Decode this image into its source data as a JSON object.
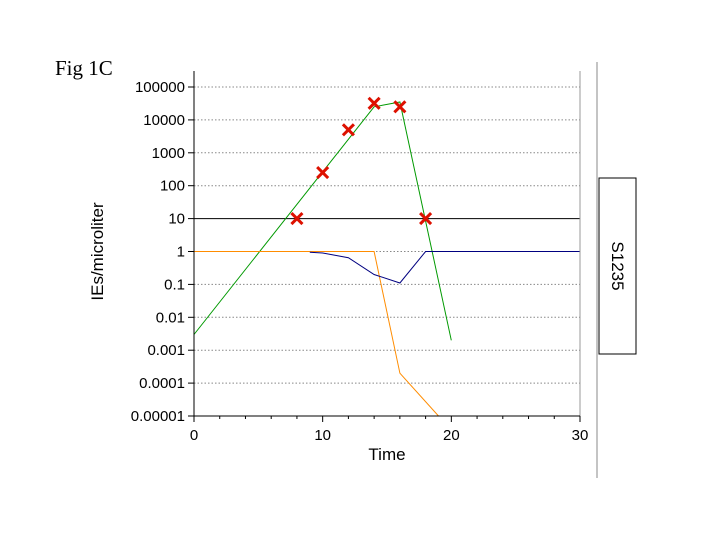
{
  "figure_label": "Fig 1C",
  "chart_data": {
    "type": "line",
    "xlabel": "Time",
    "ylabel": "IEs/microliter",
    "xlim": [
      0,
      30
    ],
    "ylim": [
      1e-05,
      100000
    ],
    "y_scale": "log",
    "x_ticks": [
      "0",
      "10",
      "20",
      "30"
    ],
    "x_tick_values": [
      0,
      10,
      20,
      30
    ],
    "y_ticks": [
      "100000",
      "10000",
      "1000",
      "100",
      "10",
      "1",
      "0.1",
      "0.01",
      "0.001",
      "0.0001",
      "0.00001"
    ],
    "y_tick_values": [
      100000,
      10000,
      1000,
      100,
      10,
      1,
      0.1,
      0.01,
      0.001,
      0.0001,
      1e-05
    ],
    "grid": "horizontal dotted",
    "threshold_line": 10,
    "series": [
      {
        "color": "#009900",
        "x": [
          0,
          14,
          16,
          20
        ],
        "y": [
          0.003,
          25000,
          35000,
          0.002
        ]
      },
      {
        "color": "#ff8c00",
        "x": [
          0,
          14,
          16,
          19
        ],
        "y": [
          1,
          1,
          0.0002,
          1e-05
        ]
      },
      {
        "color": "#000080",
        "x": [
          9,
          10,
          12,
          14,
          16,
          18,
          30
        ],
        "y": [
          0.95,
          0.9,
          0.65,
          0.2,
          0.11,
          1,
          1
        ]
      },
      {
        "marker": "x",
        "color": "#dd1100",
        "x": [
          8,
          10,
          12,
          14,
          16,
          18
        ],
        "y": [
          10,
          250,
          5000,
          32000,
          25000,
          10
        ]
      }
    ],
    "side_label": "S1235"
  }
}
